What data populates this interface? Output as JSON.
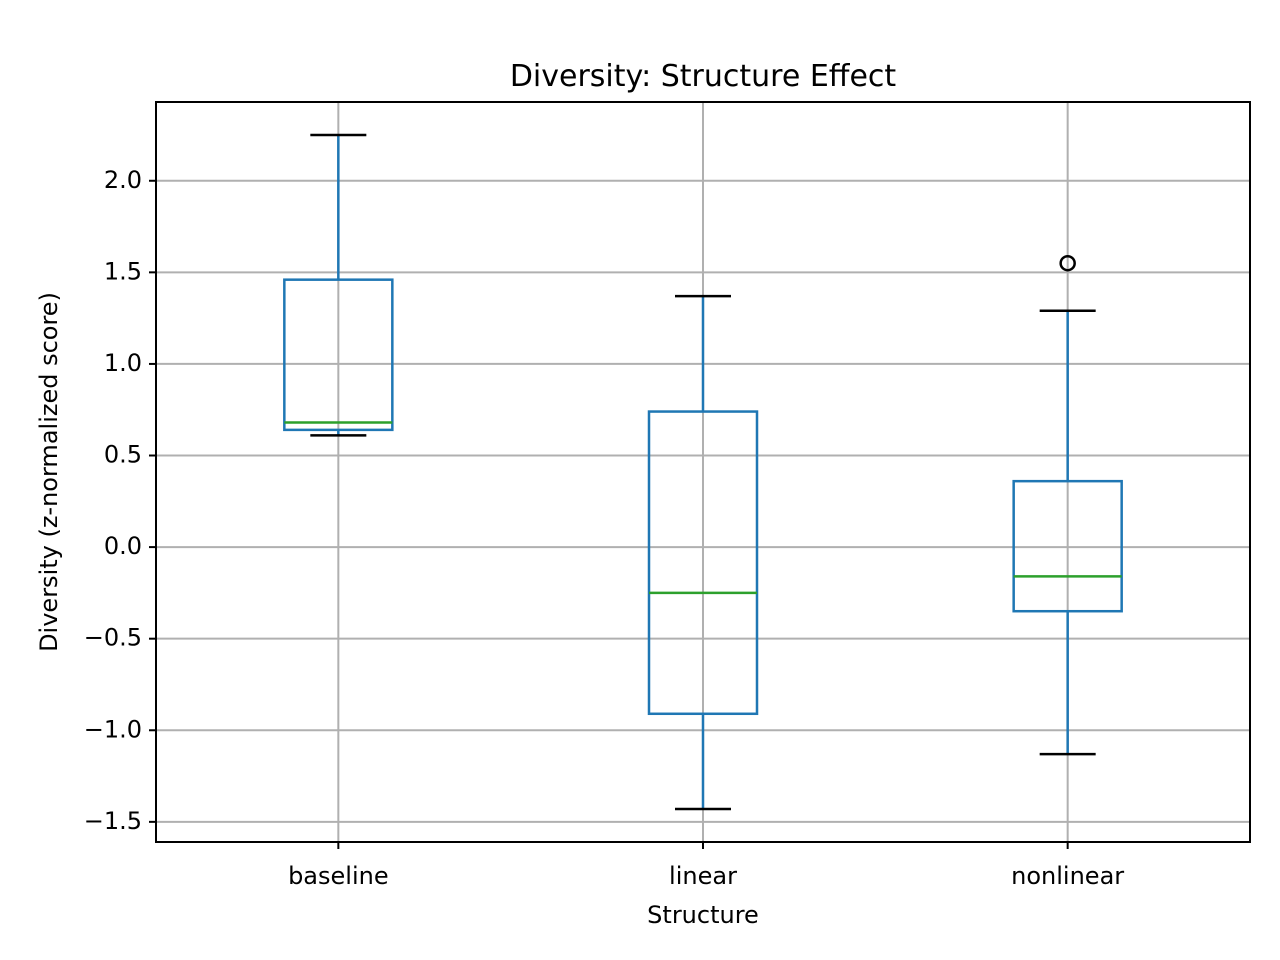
{
  "chart_data": {
    "type": "box",
    "title": "Diversity: Structure Effect",
    "xlabel": "Structure",
    "ylabel": "Diversity (z-normalized score)",
    "ylim": [
      -1.61,
      2.43
    ],
    "yticks": [
      -1.5,
      -1.0,
      -0.5,
      0.0,
      0.5,
      1.0,
      1.5,
      2.0
    ],
    "ytick_labels": [
      "−1.5",
      "−1.0",
      "−0.5",
      "0.0",
      "0.5",
      "1.0",
      "1.5",
      "2.0"
    ],
    "grid": true,
    "categories": [
      "baseline",
      "linear",
      "nonlinear"
    ],
    "boxes": [
      {
        "category": "baseline",
        "whisker_low": 0.61,
        "q1": 0.64,
        "median": 0.68,
        "q3": 1.46,
        "whisker_high": 2.25,
        "outliers": []
      },
      {
        "category": "linear",
        "whisker_low": -1.43,
        "q1": -0.91,
        "median": -0.25,
        "q3": 0.74,
        "whisker_high": 1.37,
        "outliers": []
      },
      {
        "category": "nonlinear",
        "whisker_low": -1.13,
        "q1": -0.35,
        "median": -0.16,
        "q3": 0.36,
        "whisker_high": 1.29,
        "outliers": [
          1.55
        ]
      }
    ],
    "colors": {
      "box": "#1f77b4",
      "median": "#2ca02c",
      "whisker_cap": "#000000",
      "outlier": "#000000",
      "grid": "#b0b0b0"
    }
  }
}
